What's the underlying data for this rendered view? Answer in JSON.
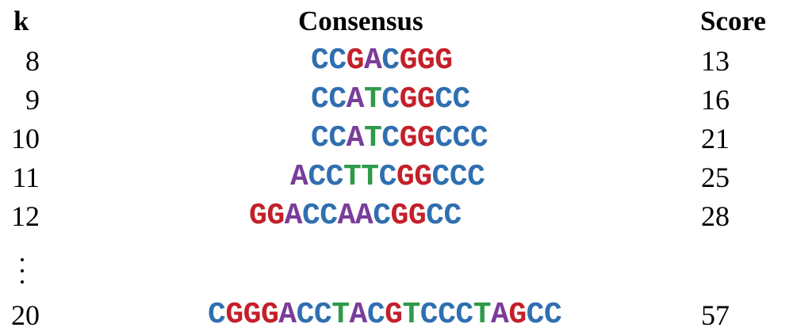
{
  "headers": {
    "k": "k",
    "consensus": "Consensus",
    "score": "Score"
  },
  "rows": [
    {
      "k": "8",
      "consensus": "CCGACGGG",
      "score": "13"
    },
    {
      "k": "9",
      "consensus": "CCATCGGCC",
      "score": "16"
    },
    {
      "k": "10",
      "consensus": "CCATCGGCCC",
      "score": "21"
    },
    {
      "k": "11",
      "consensus": "ACCTTCGGCCC",
      "score": "25"
    },
    {
      "k": "12",
      "consensus": "GGACCAACGGCC",
      "score": "28"
    },
    {
      "k": "20",
      "consensus": "CGGGACCTACGTCCCTAGCC",
      "score": "57"
    }
  ],
  "base_colors": {
    "C": "#2f6fb0",
    "G": "#c4202a",
    "A": "#7a3d9a",
    "T": "#2e9a4a"
  }
}
